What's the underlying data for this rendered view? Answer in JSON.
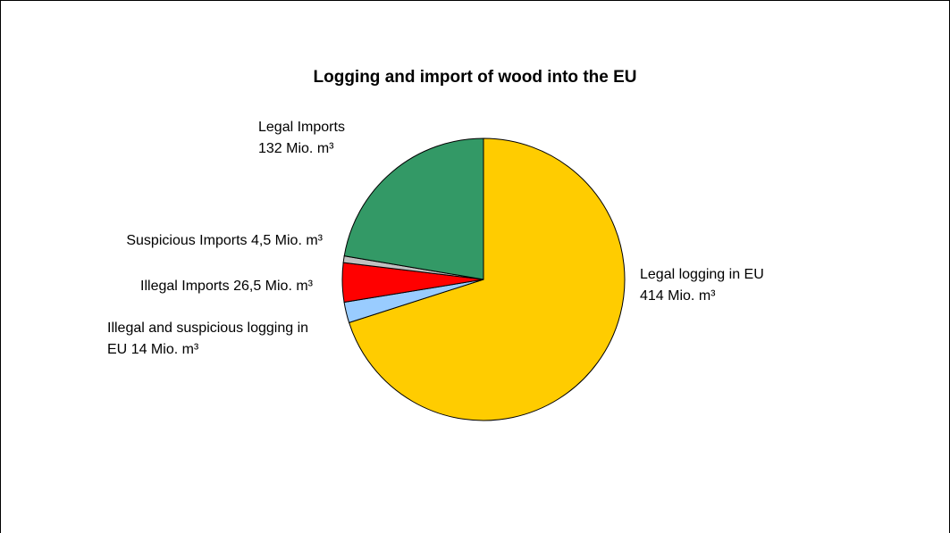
{
  "chart_data": {
    "type": "pie",
    "title": "Logging and import of wood into the EU",
    "categories": [
      "Legal logging in EU",
      "Illegal and suspicious logging in EU",
      "Illegal Imports",
      "Suspicious Imports",
      "Legal Imports"
    ],
    "values": [
      414,
      14,
      26.5,
      4.5,
      132
    ],
    "value_labels": [
      "414 Mio. m³",
      "14 Mio. m³",
      "26,5 Mio. m³",
      "4,5 Mio. m³",
      "132 Mio. m³"
    ],
    "colors": [
      "#ffcc00",
      "#99ccff",
      "#ff0000",
      "#c0c0c0",
      "#339966"
    ]
  }
}
